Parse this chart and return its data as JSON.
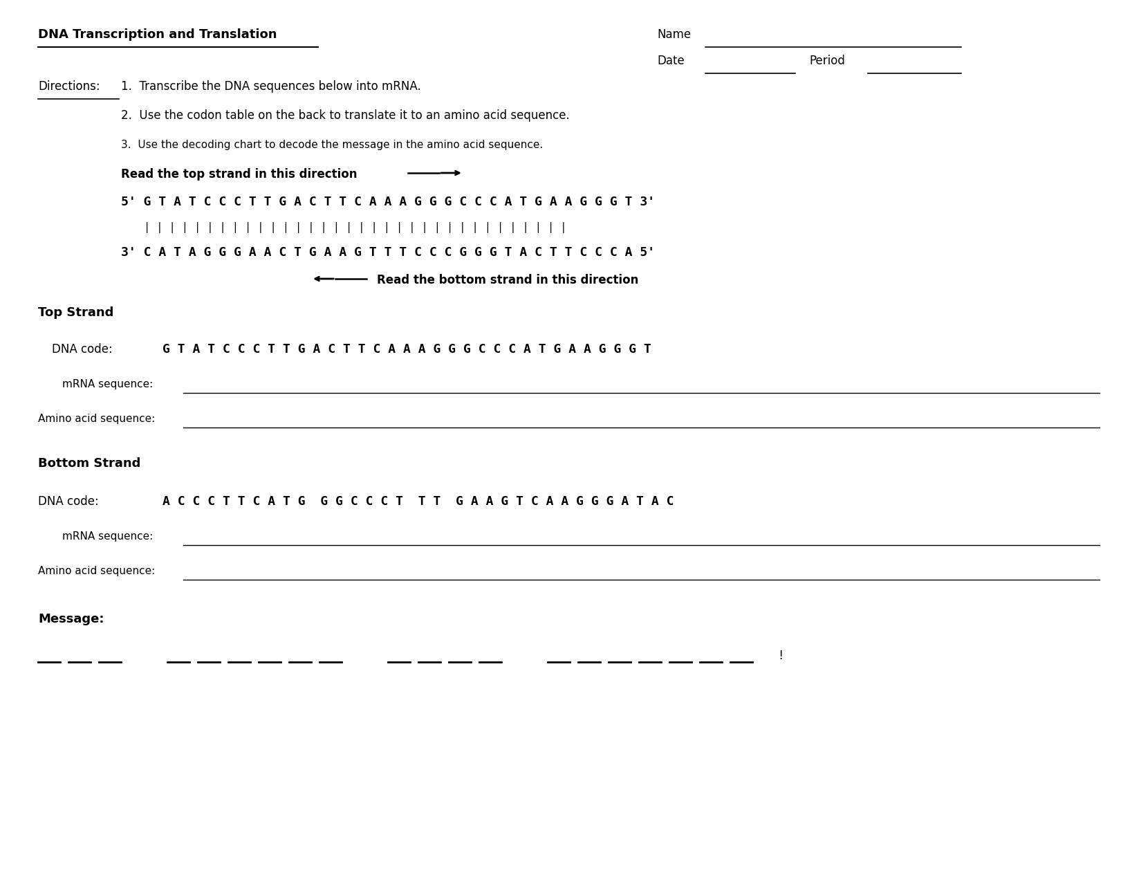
{
  "title": "DNA Transcription and Translation",
  "name_label": "Name",
  "date_label": "Date",
  "period_label": "Period",
  "directions_label": "Directions:",
  "directions": [
    "1.  Transcribe the DNA sequences below into mRNA.",
    "2.  Use the codon table on the back to translate it to an amino acid sequence.",
    "3.  Use the decoding chart to decode the message in the amino acid sequence."
  ],
  "read_top": "Read the top strand in this direction",
  "read_bottom": "Read the bottom strand in this direction",
  "top_strand_5": "5' G T A T C C C T T G A C T T C A A A G G G C C C A T G A A G G G T 3'",
  "bottom_strand_3": "3' C A T A G G G A A C T G A A G T T T C C C G G G T A C T T C C C A 5'",
  "pipes": "| | | | | | | | | | | | | | | | | | | | | | | | | | | | | | | | | |",
  "section_top": "Top Strand",
  "dna_code_top_label": "DNA code:",
  "dna_code_top": "G T A T C C C T T G A C T T C A A A G G G C C C A T G A A G G G T",
  "mrna_label": "mRNA sequence:",
  "amino_label": "Amino acid sequence:",
  "section_bottom": "Bottom Strand",
  "dna_code_bottom_label": "DNA code:",
  "dna_code_bottom": "A C C C T T C A T G  G G C C C T  T T  G A A G T C A A G G G A T A C",
  "message_label": "Message:",
  "bg_color": "#ffffff",
  "text_color": "#000000"
}
